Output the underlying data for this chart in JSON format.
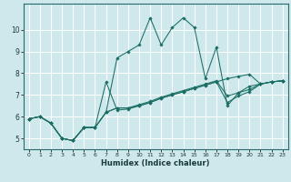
{
  "xlabel": "Humidex (Indice chaleur)",
  "bg_color": "#cee8ec",
  "grid_color": "#ffffff",
  "line_color": "#1a6e64",
  "xlim": [
    -0.5,
    23.5
  ],
  "ylim": [
    4.5,
    11.2
  ],
  "xticks": [
    0,
    1,
    2,
    3,
    4,
    5,
    6,
    7,
    8,
    9,
    10,
    11,
    12,
    13,
    14,
    15,
    16,
    17,
    18,
    19,
    20,
    21,
    22,
    23
  ],
  "yticks": [
    5,
    6,
    7,
    8,
    9,
    10
  ],
  "lines": [
    [
      5.9,
      6.0,
      5.7,
      5.0,
      4.9,
      5.5,
      5.5,
      7.6,
      6.3,
      6.35,
      6.5,
      6.65,
      6.85,
      7.0,
      7.15,
      7.3,
      7.45,
      7.6,
      7.75,
      7.85,
      7.95,
      7.5,
      7.6,
      7.65
    ],
    [
      5.9,
      6.0,
      5.7,
      5.0,
      4.9,
      5.5,
      5.5,
      6.2,
      8.7,
      9.0,
      9.3,
      10.55,
      9.3,
      10.1,
      10.55,
      10.1,
      7.75,
      9.2,
      6.5,
      7.1,
      7.4,
      7.5,
      7.6,
      7.65
    ],
    [
      5.9,
      6.0,
      5.7,
      5.0,
      4.9,
      5.5,
      5.5,
      6.2,
      6.4,
      6.4,
      6.55,
      6.7,
      6.9,
      7.05,
      7.2,
      7.35,
      7.5,
      7.65,
      6.95,
      7.1,
      7.25,
      7.5,
      7.6,
      7.65
    ],
    [
      5.9,
      6.0,
      5.7,
      5.0,
      4.9,
      5.5,
      5.5,
      6.2,
      6.4,
      6.4,
      6.5,
      6.65,
      6.85,
      7.0,
      7.15,
      7.3,
      7.45,
      7.6,
      6.65,
      6.95,
      7.15,
      7.5,
      7.6,
      7.65
    ]
  ]
}
